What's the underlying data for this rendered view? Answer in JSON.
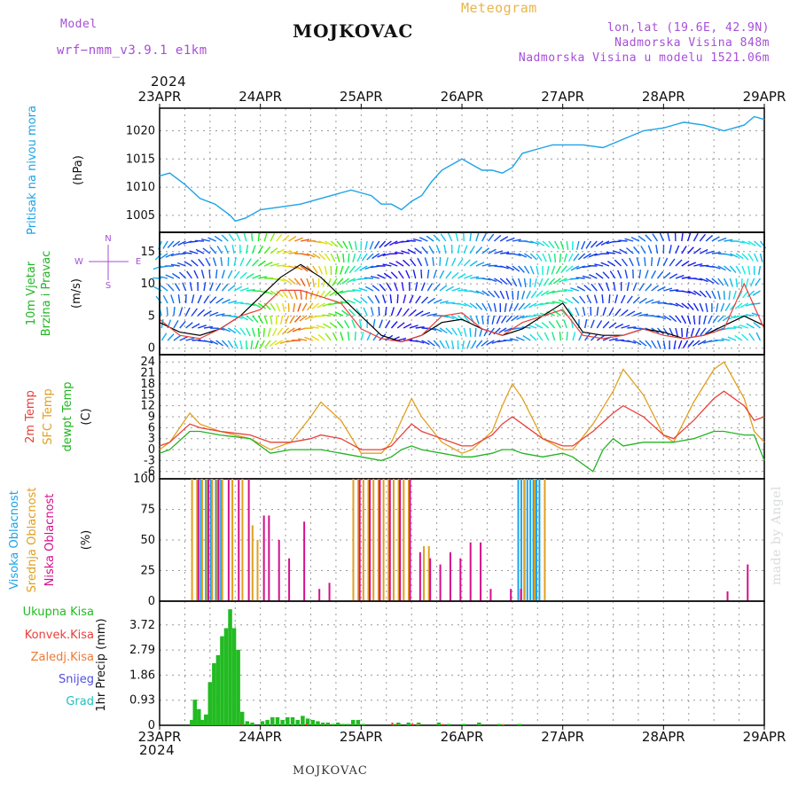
{
  "header": {
    "model_label": "Model",
    "model_name": "wrf−nmm_v3.9.1  e1km",
    "station": "MOJKOVAC",
    "product": "Meteogram",
    "lonlat": "lon,lat (19.6E, 42.9N)",
    "elevation": "Nadmorska Visina 848m",
    "model_elevation": "Nadmorska Visina u modelu 1521.06m",
    "year": "2024",
    "footer_station": "MOJKOVAC",
    "credit": "made by Angel"
  },
  "colors": {
    "pressure": "#1ca3e8",
    "wind_label": "#22b422",
    "temp2m": "#e8403a",
    "sfc": "#e0a020",
    "dew": "#22b422",
    "high_cloud": "#1ca3e8",
    "mid_cloud": "#e0a020",
    "low_cloud": "#d4108c",
    "total_precip": "#22bb22",
    "conv_precip": "#e8403a",
    "frz_precip": "#f07a30",
    "snow": "#5050e0",
    "graupel": "#20c0c0",
    "compass": "#a54fd6"
  },
  "chart_data": [
    {
      "type": "line",
      "panel": "pressure",
      "ylabel": [
        "Pritisak na nivou mora",
        "(hPa)"
      ],
      "x_ticks": [
        "23APR",
        "24APR",
        "25APR",
        "26APR",
        "27APR",
        "28APR",
        "29APR"
      ],
      "ylim": [
        1002,
        1024
      ],
      "yticks": [
        1005,
        1010,
        1015,
        1020
      ],
      "grid": true,
      "x": [
        0,
        0.1,
        0.25,
        0.4,
        0.55,
        0.7,
        0.75,
        0.85,
        1.0,
        1.2,
        1.4,
        1.6,
        1.8,
        1.9,
        2.0,
        2.1,
        2.2,
        2.3,
        2.4,
        2.5,
        2.6,
        2.7,
        2.8,
        2.9,
        3.0,
        3.2,
        3.3,
        3.4,
        3.5,
        3.6,
        3.8,
        3.9,
        4.0,
        4.2,
        4.4,
        4.6,
        4.8,
        5.0,
        5.2,
        5.4,
        5.6,
        5.8,
        5.9,
        6.0
      ],
      "y": [
        1012,
        1012.5,
        1010.5,
        1008,
        1007,
        1005,
        1004,
        1004.5,
        1006,
        1006.5,
        1007,
        1008,
        1009,
        1009.5,
        1009,
        1008.5,
        1007,
        1007,
        1006,
        1007.5,
        1008.5,
        1011,
        1013,
        1014,
        1015,
        1013,
        1013,
        1012.5,
        1013.5,
        1016,
        1017,
        1017.5,
        1017.5,
        1017.5,
        1017,
        1018.5,
        1020,
        1020.5,
        1021.5,
        1021,
        1020,
        1021,
        1022.5,
        1022
      ]
    },
    {
      "type": "line",
      "panel": "wind",
      "ylabel": [
        "10m Vjetar",
        "Brzina i Pravac",
        "(m/s)"
      ],
      "compass": {
        "n": "N",
        "s": "S",
        "e": "E",
        "w": "W"
      },
      "ylim": [
        -1,
        18
      ],
      "yticks": [
        0,
        5,
        10,
        15
      ],
      "grid": true,
      "series": [
        {
          "x": [
            0,
            0.2,
            0.4,
            0.6,
            0.8,
            1.0,
            1.2,
            1.4,
            1.6,
            1.8,
            2.0,
            2.2,
            2.4,
            2.6,
            2.8,
            3.0,
            3.2,
            3.4,
            3.6,
            3.8,
            4.0,
            4.2,
            4.4,
            4.6,
            4.8,
            5.0,
            5.2,
            5.4,
            5.6,
            5.8,
            6.0
          ],
          "y": [
            4,
            2.5,
            2,
            3,
            5,
            8,
            11,
            13,
            11,
            8,
            5,
            2,
            1,
            2,
            4,
            4.5,
            3,
            2,
            3,
            5,
            7,
            2.5,
            2,
            2,
            3,
            2.5,
            1.5,
            2,
            3.5,
            5,
            3.5
          ]
        },
        {
          "x": [
            0,
            0.2,
            0.4,
            0.6,
            0.8,
            1.0,
            1.2,
            1.4,
            1.6,
            1.8,
            2.0,
            2.2,
            2.4,
            2.6,
            2.8,
            3.0,
            3.2,
            3.4,
            3.6,
            3.8,
            4.0,
            4.2,
            4.4,
            4.6,
            4.8,
            5.0,
            5.2,
            5.4,
            5.6,
            5.8,
            6.0
          ],
          "y": [
            4.5,
            2,
            1.5,
            3,
            5,
            6,
            9,
            9,
            8,
            7,
            3,
            1.5,
            1,
            2,
            5,
            5.5,
            3,
            2,
            4,
            5,
            6,
            2,
            1.5,
            2,
            3,
            2,
            1.5,
            2,
            3,
            10,
            3
          ]
        }
      ]
    },
    {
      "type": "line",
      "panel": "temperature",
      "ylabel": [
        "2m Temp",
        "SFC Temp",
        "dewpt Temp",
        "(C)"
      ],
      "ylim": [
        -8,
        26
      ],
      "yticks": [
        -6,
        -3,
        0,
        3,
        6,
        9,
        12,
        15,
        18,
        21,
        24
      ],
      "grid": true,
      "series": [
        {
          "name": "2m Temp",
          "x": [
            0,
            0.1,
            0.3,
            0.4,
            0.6,
            0.9,
            1.1,
            1.3,
            1.5,
            1.6,
            1.8,
            2.0,
            2.2,
            2.3,
            2.4,
            2.5,
            2.6,
            2.8,
            3.0,
            3.1,
            3.3,
            3.4,
            3.5,
            3.6,
            3.8,
            4.0,
            4.1,
            4.3,
            4.5,
            4.6,
            4.8,
            5.0,
            5.1,
            5.3,
            5.5,
            5.6,
            5.8,
            5.9,
            6.0
          ],
          "y": [
            1,
            2,
            7,
            6,
            5,
            4,
            2,
            2,
            3,
            4,
            3,
            0,
            0,
            1,
            4,
            7,
            5,
            3,
            1,
            1,
            4,
            7,
            9,
            7,
            3,
            1,
            1,
            5,
            10,
            12,
            9,
            4,
            3,
            8,
            14,
            16,
            12,
            8,
            9
          ]
        },
        {
          "name": "SFC Temp",
          "x": [
            0,
            0.1,
            0.3,
            0.4,
            0.6,
            0.9,
            1.1,
            1.3,
            1.5,
            1.6,
            1.8,
            2.0,
            2.2,
            2.3,
            2.4,
            2.5,
            2.6,
            2.8,
            3.0,
            3.1,
            3.3,
            3.4,
            3.5,
            3.6,
            3.8,
            4.0,
            4.1,
            4.3,
            4.5,
            4.6,
            4.8,
            5.0,
            5.1,
            5.3,
            5.5,
            5.6,
            5.8,
            5.9,
            6.0
          ],
          "y": [
            0,
            2,
            10,
            7,
            5,
            3,
            0,
            2,
            9,
            13,
            8,
            -1,
            -1,
            2,
            8,
            14,
            9,
            2,
            -1,
            0,
            5,
            12,
            18,
            14,
            3,
            0,
            0,
            7,
            16,
            22,
            15,
            4,
            2,
            13,
            22,
            24,
            14,
            5,
            2
          ]
        },
        {
          "name": "dewpt Temp",
          "x": [
            0,
            0.1,
            0.3,
            0.4,
            0.6,
            0.9,
            1.1,
            1.3,
            1.5,
            1.6,
            1.8,
            2.0,
            2.2,
            2.3,
            2.4,
            2.5,
            2.6,
            2.8,
            3.0,
            3.1,
            3.3,
            3.4,
            3.5,
            3.6,
            3.8,
            4.0,
            4.1,
            4.3,
            4.4,
            4.5,
            4.6,
            4.8,
            5.0,
            5.1,
            5.3,
            5.5,
            5.6,
            5.8,
            5.9,
            6.0
          ],
          "y": [
            -1,
            0,
            5,
            5,
            4,
            3,
            -1,
            0,
            0,
            0,
            -1,
            -2,
            -3,
            -2,
            0,
            1,
            0,
            -1,
            -2,
            -2,
            -1,
            0,
            0,
            -1,
            -2,
            -1,
            -2,
            -6,
            0,
            3,
            1,
            2,
            2,
            2,
            3,
            5,
            5,
            4,
            4,
            -3
          ]
        }
      ]
    },
    {
      "type": "bar",
      "panel": "clouds",
      "ylabel": [
        "Visoka Oblacnost",
        "Srednja Oblacnost",
        "Niska Oblacnost",
        "(%)"
      ],
      "ylim": [
        0,
        100
      ],
      "yticks": [
        0,
        25,
        50,
        75,
        100
      ],
      "grid": true,
      "series": [
        {
          "name": "Visoka Oblacnost",
          "x": [
            0.4,
            0.45,
            0.5,
            0.55,
            0.6,
            3.55,
            3.58,
            3.61,
            3.64,
            3.67,
            3.7,
            3.73,
            3.76
          ],
          "values": [
            100,
            100,
            100,
            100,
            100,
            100,
            100,
            100,
            100,
            100,
            100,
            100,
            100
          ]
        },
        {
          "name": "Srednja Oblacnost",
          "x": [
            0.3,
            0.35,
            0.4,
            0.45,
            0.5,
            0.55,
            0.6,
            0.7,
            0.8,
            0.9,
            0.95,
            1.9,
            1.95,
            2.0,
            2.05,
            2.1,
            2.15,
            2.2,
            2.25,
            2.3,
            2.35,
            2.4,
            2.45,
            2.6,
            2.65,
            3.6,
            3.7,
            3.8
          ],
          "values": [
            100,
            100,
            100,
            100,
            100,
            100,
            100,
            100,
            100,
            62,
            50,
            100,
            100,
            100,
            100,
            100,
            100,
            100,
            100,
            100,
            100,
            100,
            100,
            45,
            45,
            100,
            100,
            100
          ]
        },
        {
          "name": "Niska Oblacnost",
          "x": [
            0.35,
            0.45,
            0.55,
            0.65,
            0.75,
            0.85,
            1.0,
            1.05,
            1.15,
            1.25,
            1.4,
            1.55,
            1.65,
            1.95,
            2.05,
            2.15,
            2.25,
            2.35,
            2.45,
            2.55,
            2.65,
            2.75,
            2.85,
            2.95,
            3.05,
            3.15,
            3.25,
            3.45,
            3.55,
            5.6,
            5.8
          ],
          "values": [
            100,
            100,
            100,
            100,
            100,
            100,
            70,
            70,
            50,
            35,
            65,
            10,
            15,
            100,
            100,
            100,
            100,
            100,
            100,
            40,
            35,
            30,
            40,
            35,
            48,
            48,
            10,
            10,
            10,
            8,
            30
          ]
        }
      ]
    },
    {
      "type": "bar",
      "panel": "precipitation",
      "ylabel": [
        "1hr Precip (mm)"
      ],
      "legend": [
        "Ukupna Kisa",
        "Konvek.Kisa",
        "Zaledj.Kisa",
        "Snijeg",
        "Grad"
      ],
      "x_ticks": [
        "23APR",
        "24APR",
        "25APR",
        "26APR",
        "27APR",
        "28APR",
        "29APR"
      ],
      "ylim": [
        0,
        4.6
      ],
      "yticks": [
        0,
        0.93,
        1.86,
        2.79,
        3.72
      ],
      "grid": true,
      "series": [
        {
          "name": "Ukupna Kisa",
          "x": [
            0.3,
            0.33,
            0.37,
            0.4,
            0.44,
            0.48,
            0.52,
            0.56,
            0.6,
            0.64,
            0.68,
            0.72,
            0.76,
            0.8,
            0.85,
            0.9,
            1.0,
            1.05,
            1.1,
            1.15,
            1.2,
            1.25,
            1.3,
            1.35,
            1.4,
            1.45,
            1.5,
            1.55,
            1.6,
            1.65,
            1.7,
            1.75,
            1.8,
            1.85,
            1.9,
            1.95,
            2.0,
            2.3,
            2.35,
            2.45,
            2.55,
            2.75,
            2.85,
            3.0,
            3.15,
            3.35,
            3.55
          ],
          "values": [
            0.2,
            0.95,
            0.6,
            0.2,
            0.4,
            1.6,
            2.3,
            2.6,
            3.3,
            3.6,
            4.3,
            3.6,
            2.8,
            0.5,
            0.15,
            0.1,
            0.15,
            0.2,
            0.3,
            0.3,
            0.2,
            0.3,
            0.3,
            0.2,
            0.35,
            0.25,
            0.2,
            0.15,
            0.1,
            0.1,
            0.05,
            0.1,
            0.05,
            0.05,
            0.2,
            0.2,
            0.05,
            0.05,
            0.1,
            0.1,
            0.1,
            0.1,
            0.05,
            0.05,
            0.1,
            0.05,
            0.05
          ]
        },
        {
          "name": "Konvek.Kisa",
          "x": [
            0.8,
            1.45,
            2.3,
            2.35,
            2.5,
            2.8
          ],
          "values": [
            0.05,
            0.08,
            0.1,
            0.05,
            0.08,
            0.05
          ]
        },
        {
          "name": "Zaledj.Kisa",
          "x": [
            2.55,
            3.4
          ],
          "values": [
            0.05,
            0.05
          ]
        }
      ]
    }
  ]
}
